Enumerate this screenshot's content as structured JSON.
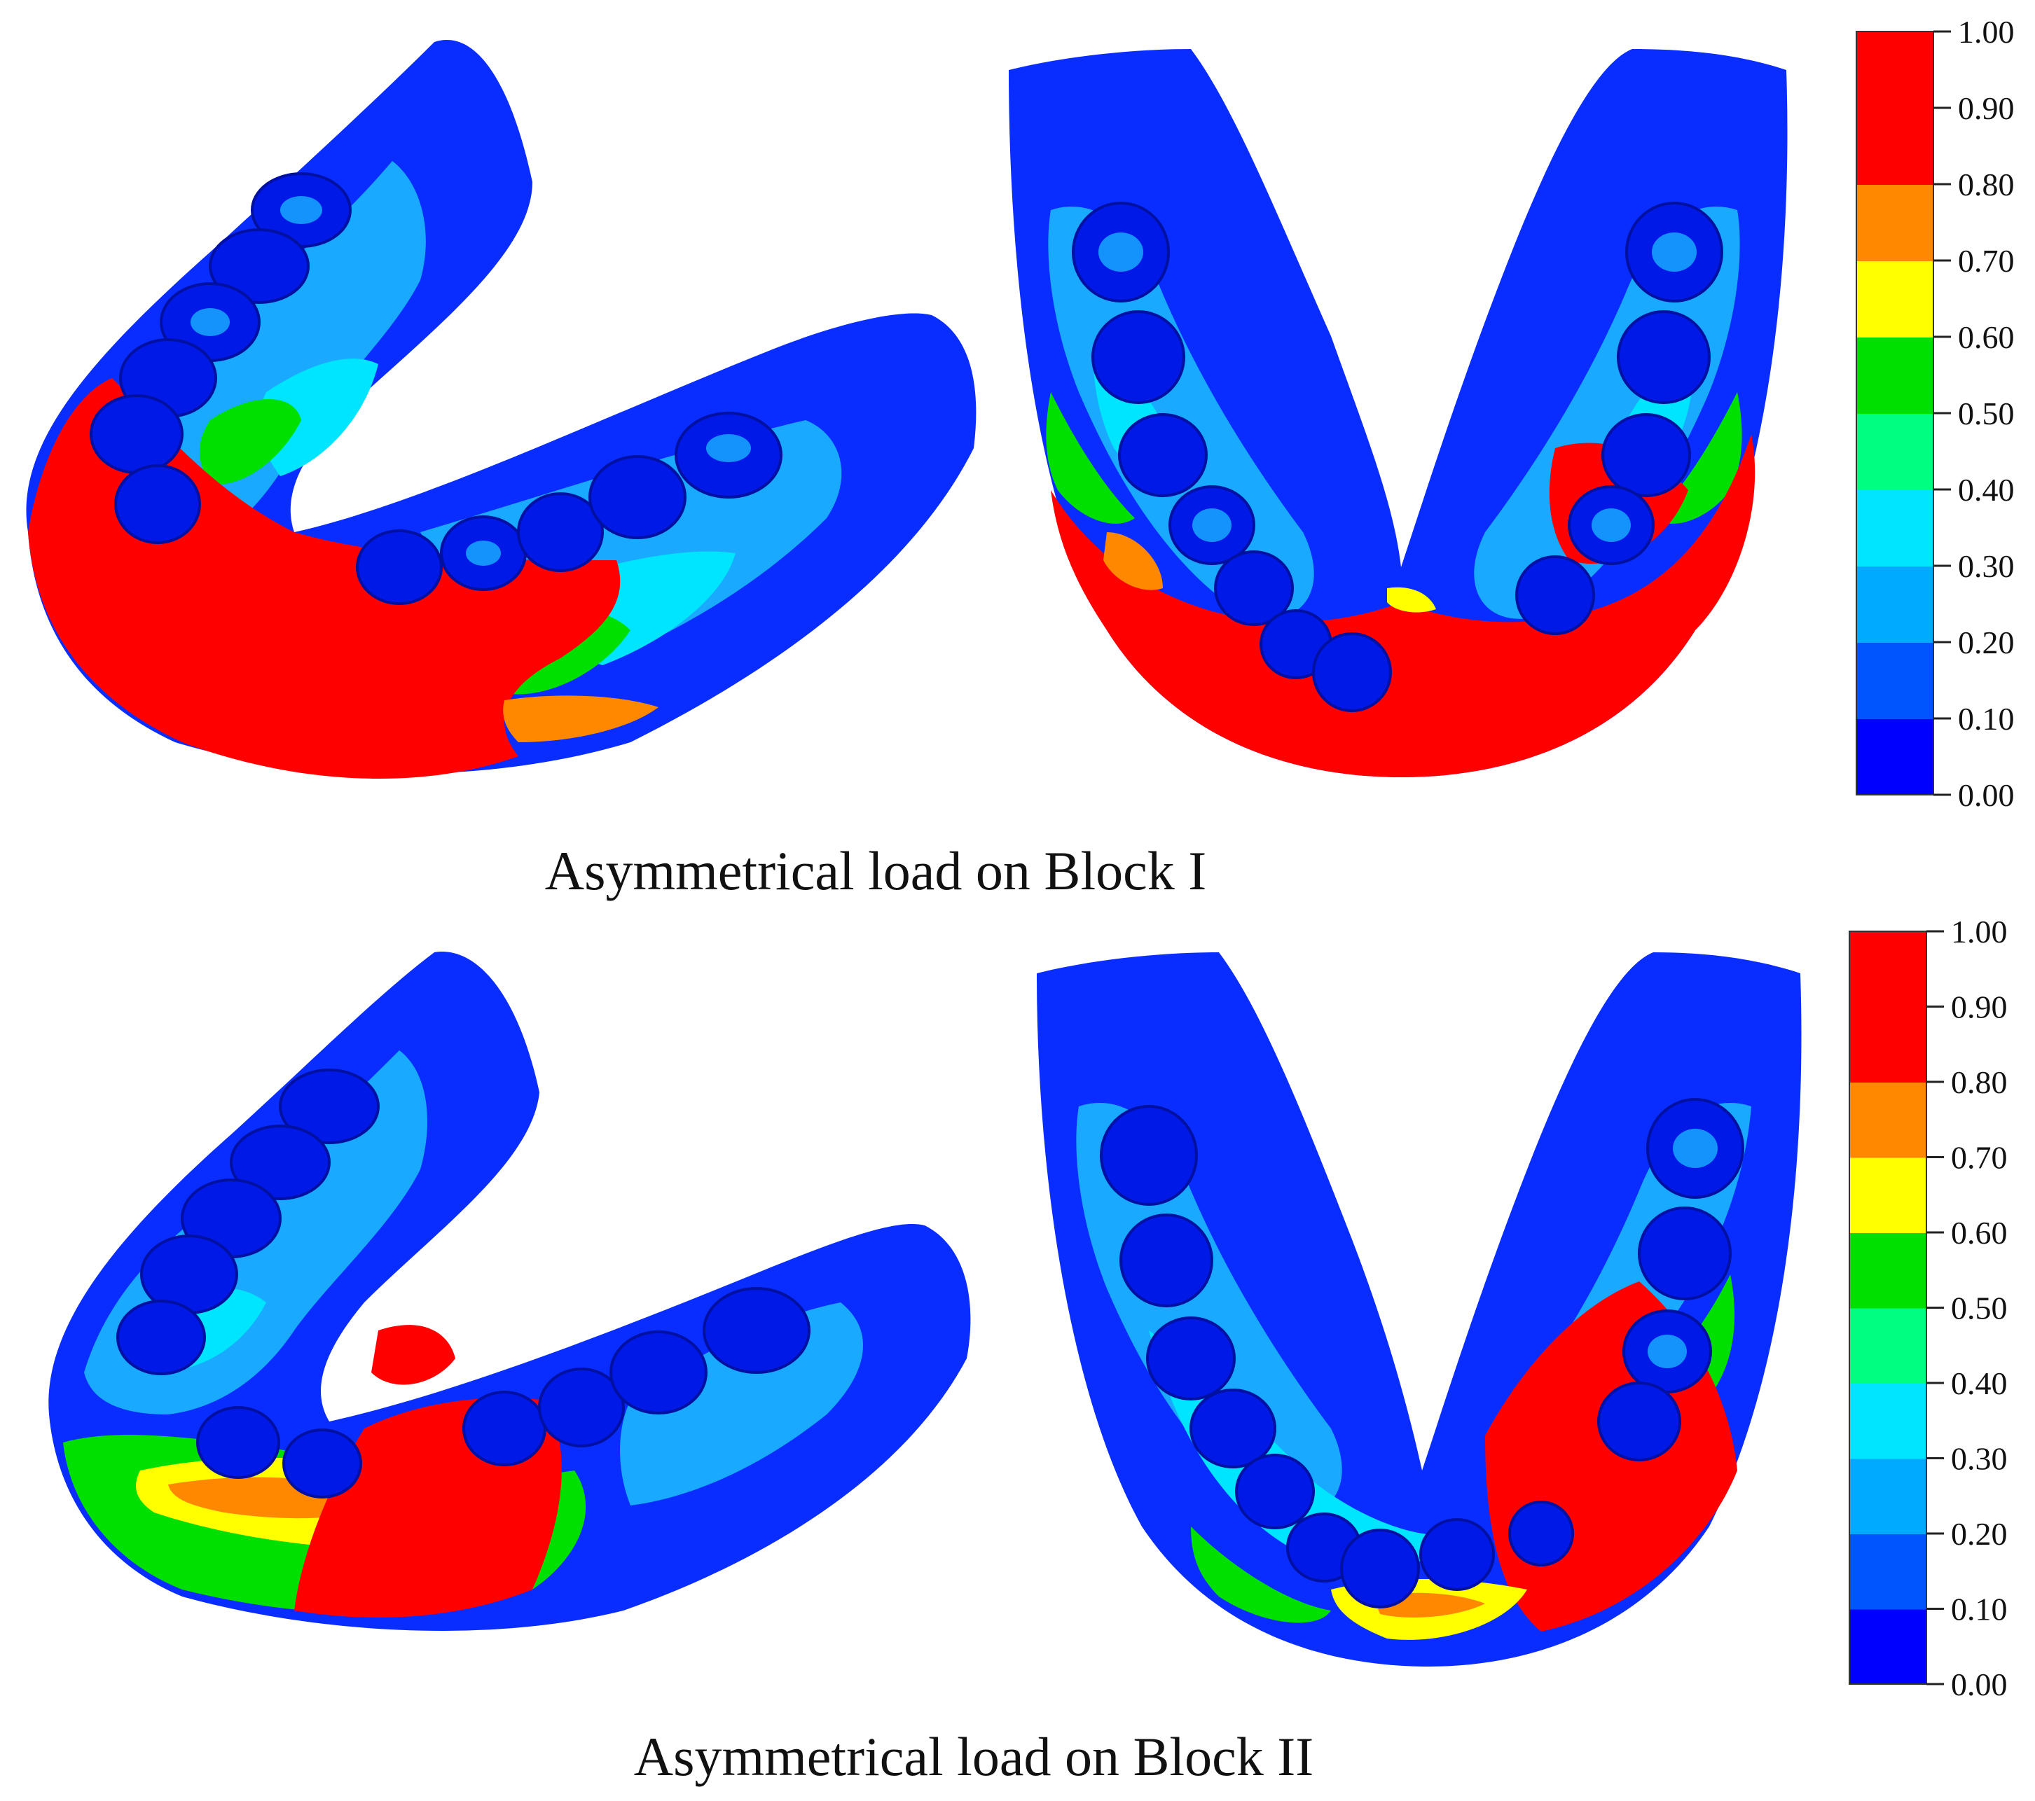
{
  "colors": {
    "background": "#ffffff",
    "colormap_bottom_to_top": [
      "#0000ff",
      "#0055ff",
      "#00aaff",
      "#00e5ff",
      "#00ff80",
      "#00e000",
      "#ffff00",
      "#ff8800",
      "#ff0000",
      "#ff0000"
    ]
  },
  "colorbar_ticks": [
    "1.00",
    "0.90",
    "0.80",
    "0.70",
    "0.60",
    "0.50",
    "0.40",
    "0.30",
    "0.20",
    "0.10",
    "0.00"
  ],
  "panels": [
    {
      "caption": "Asymmetrical load on Block I",
      "views": [
        "oblique-view",
        "occlusal-view"
      ]
    },
    {
      "caption": "Asymmetrical load on Block II",
      "views": [
        "oblique-view",
        "occlusal-view"
      ]
    }
  ]
}
